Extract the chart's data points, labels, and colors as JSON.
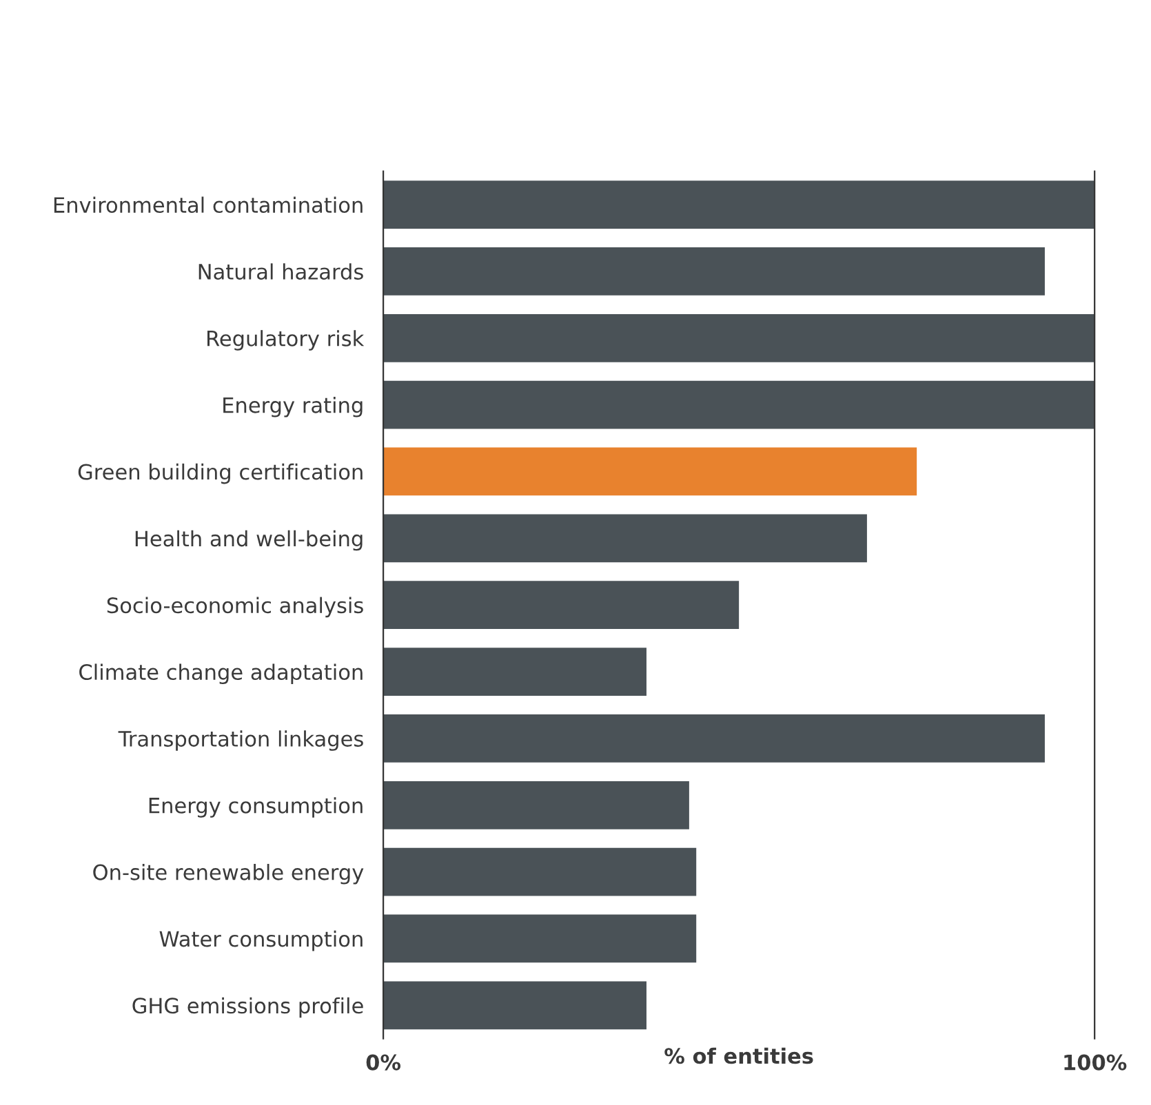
{
  "chart_data": {
    "type": "bar",
    "orientation": "horizontal",
    "categories": [
      "Environmental contamination",
      "Natural hazards",
      "Regulatory risk",
      "Energy rating",
      "Green building certification",
      "Health and well-being",
      "Socio-economic analysis",
      "Climate change adaptation",
      "Transportation linkages",
      "Energy consumption",
      "On-site renewable energy",
      "Water consumption",
      "GHG emissions profile"
    ],
    "values": [
      100,
      93,
      100,
      100,
      75,
      68,
      50,
      37,
      93,
      43,
      44,
      44,
      37
    ],
    "colors": [
      "#4a5257",
      "#4a5257",
      "#4a5257",
      "#4a5257",
      "#e8822e",
      "#4a5257",
      "#4a5257",
      "#4a5257",
      "#4a5257",
      "#4a5257",
      "#4a5257",
      "#4a5257",
      "#4a5257"
    ],
    "xlabel": "% of entities",
    "xlim": [
      0,
      100
    ],
    "xticks": [
      {
        "value": 0,
        "label": "0%"
      },
      {
        "value": 100,
        "label": "100%"
      }
    ],
    "grid": false,
    "legend": false
  }
}
